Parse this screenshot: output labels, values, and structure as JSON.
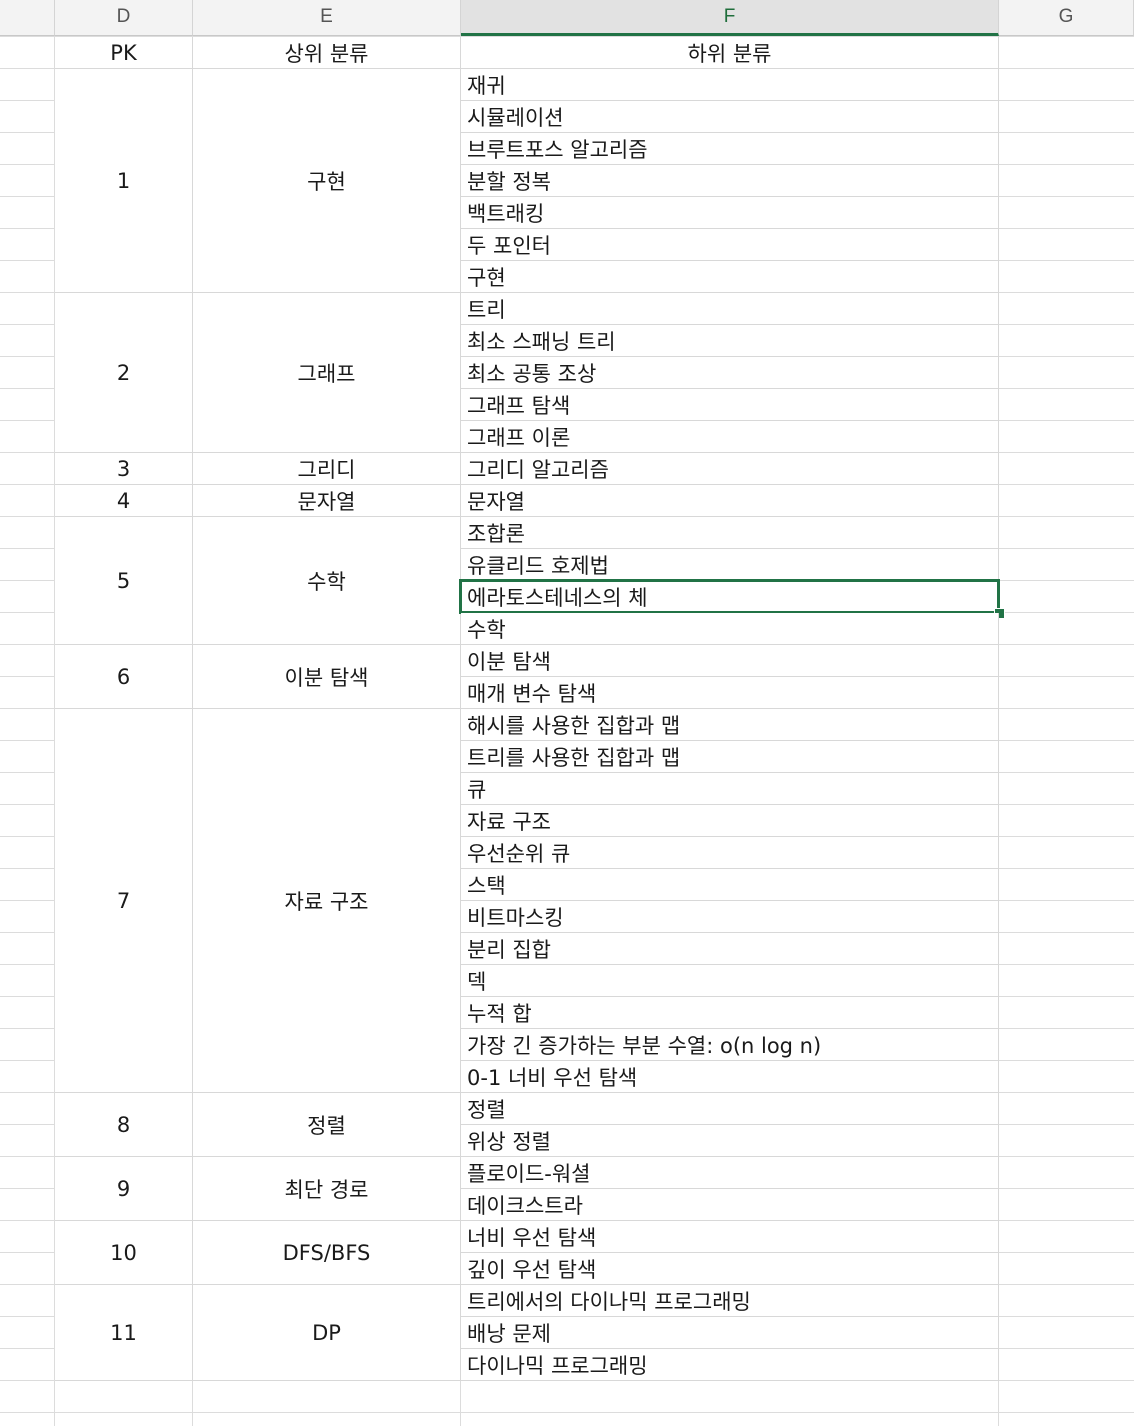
{
  "columns": [
    "D",
    "E",
    "F",
    "G"
  ],
  "active_column": "F",
  "header_row": {
    "pk": "PK",
    "top": "상위 분류",
    "sub": "하위 분류"
  },
  "groups": [
    {
      "pk": "1",
      "top": "구현",
      "subs": [
        "재귀",
        "시뮬레이션",
        "브루트포스 알고리즘",
        "분할 정복",
        "백트래킹",
        "두 포인터",
        "구현"
      ]
    },
    {
      "pk": "2",
      "top": "그래프",
      "subs": [
        "트리",
        "최소 스패닝 트리",
        "최소 공통 조상",
        "그래프 탐색",
        "그래프 이론"
      ]
    },
    {
      "pk": "3",
      "top": "그리디",
      "subs": [
        "그리디 알고리즘"
      ]
    },
    {
      "pk": "4",
      "top": "문자열",
      "subs": [
        "문자열"
      ]
    },
    {
      "pk": "5",
      "top": "수학",
      "subs": [
        "조합론",
        "유클리드 호제법",
        "에라토스테네스의 체",
        "수학"
      ]
    },
    {
      "pk": "6",
      "top": "이분 탐색",
      "subs": [
        "이분 탐색",
        "매개 변수 탐색"
      ]
    },
    {
      "pk": "7",
      "top": "자료 구조",
      "subs": [
        "해시를 사용한 집합과 맵",
        "트리를 사용한 집합과 맵",
        "큐",
        "자료 구조",
        "우선순위 큐",
        "스택",
        "비트마스킹",
        "분리 집합",
        "덱",
        "누적 합",
        "가장 긴 증가하는 부분 수열: o(n log n)",
        "0-1 너비 우선 탐색"
      ]
    },
    {
      "pk": "8",
      "top": "정렬",
      "subs": [
        "정렬",
        "위상 정렬"
      ]
    },
    {
      "pk": "9",
      "top": "최단 경로",
      "subs": [
        "플로이드-워셜",
        "데이크스트라"
      ]
    },
    {
      "pk": "10",
      "top": "DFS/BFS",
      "subs": [
        "너비 우선 탐색",
        "깊이 우선 탐색"
      ]
    },
    {
      "pk": "11",
      "top": "DP",
      "subs": [
        "트리에서의 다이나믹 프로그래밍",
        "배낭 문제",
        "다이나믹 프로그래밍"
      ]
    }
  ],
  "selected_cell": {
    "group": 4,
    "row": 2
  },
  "colors": {
    "accent": "#217346",
    "grid": "#d8d8d8",
    "header_bg": "#f3f3f3"
  }
}
